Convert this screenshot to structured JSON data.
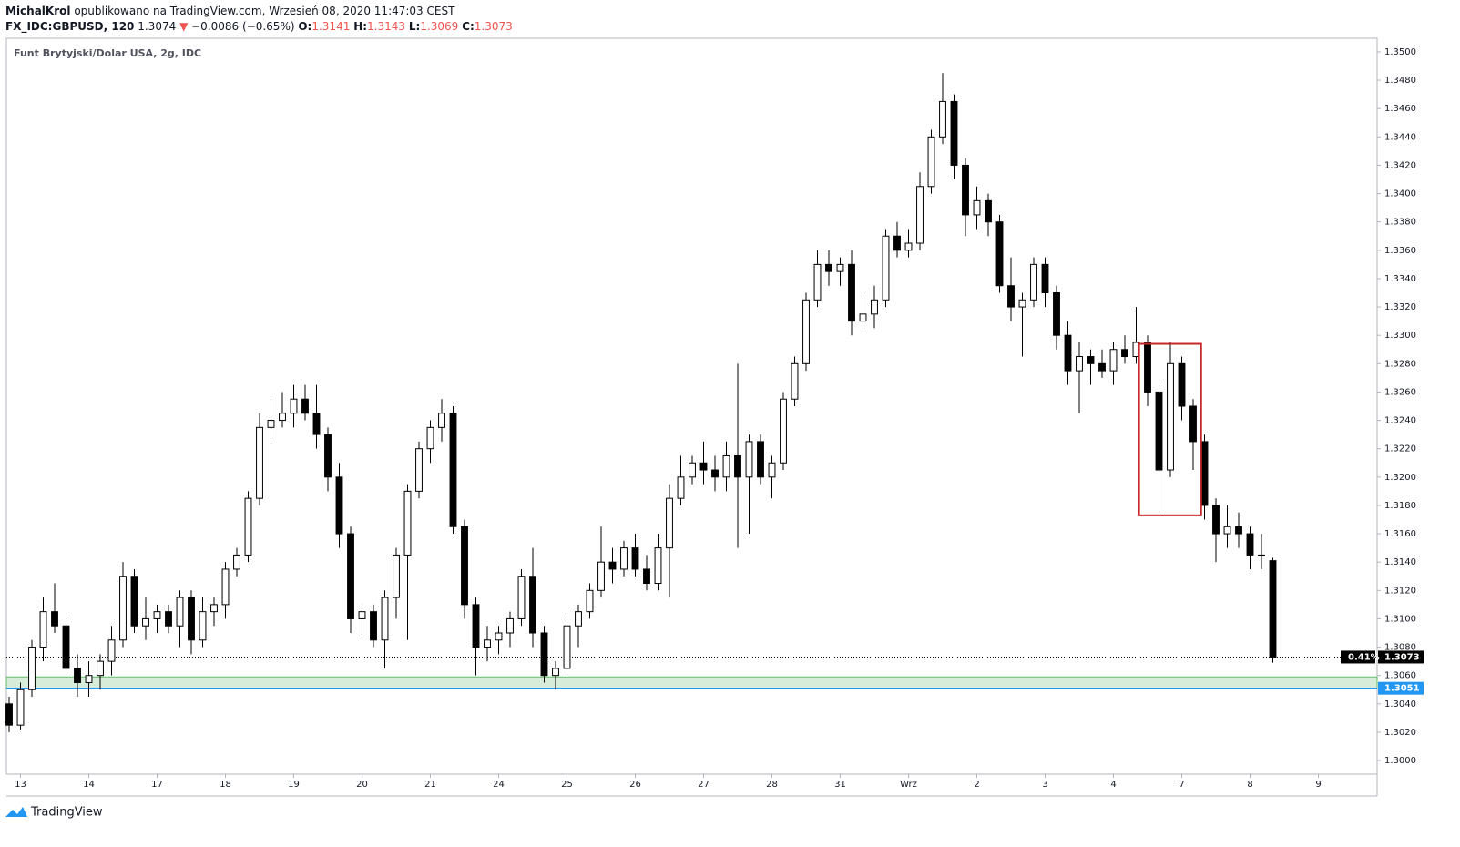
{
  "header": {
    "author": "MichalKrol",
    "published": "opublikowano na TradingView.com, Wrzesień 08, 2020 11:47:03 CEST",
    "symbol": "FX_IDC:GBPUSD, 120",
    "price": "1.3074",
    "arrow": "▼",
    "change": "−0.0086 (−0.65%)",
    "ohlc": [
      {
        "label": "O:",
        "value": "1.3141"
      },
      {
        "label": "H:",
        "value": "1.3143"
      },
      {
        "label": "L:",
        "value": "1.3069"
      },
      {
        "label": "C:",
        "value": "1.3073"
      }
    ]
  },
  "footer": {
    "brand": "TradingView"
  },
  "chart_data": {
    "type": "candlestick",
    "title": "Funt Brytyjski/Dolar USA, 2g, IDC",
    "up_color": "#ffffff",
    "down_color": "#000000",
    "outline_color": "#000000",
    "xlim": [
      -0.24,
      120.16
    ],
    "ylim": [
      1.29904,
      1.35096
    ],
    "xticks": [
      {
        "value": 1,
        "label": "13"
      },
      {
        "value": 7,
        "label": "14"
      },
      {
        "value": 13,
        "label": "17"
      },
      {
        "value": 19,
        "label": "18"
      },
      {
        "value": 25,
        "label": "19"
      },
      {
        "value": 31,
        "label": "20"
      },
      {
        "value": 37,
        "label": "21"
      },
      {
        "value": 43,
        "label": "24"
      },
      {
        "value": 49,
        "label": "25"
      },
      {
        "value": 55,
        "label": "26"
      },
      {
        "value": 61,
        "label": "27"
      },
      {
        "value": 67,
        "label": "28"
      },
      {
        "value": 73,
        "label": "31"
      },
      {
        "value": 79,
        "label": "Wrz"
      },
      {
        "value": 85,
        "label": "2"
      },
      {
        "value": 91,
        "label": "3"
      },
      {
        "value": 97,
        "label": "4"
      },
      {
        "value": 103,
        "label": "7"
      },
      {
        "value": 109,
        "label": "8"
      },
      {
        "value": 115,
        "label": "9"
      }
    ],
    "yticks": [
      {
        "value": 1.3,
        "label": "1.3000"
      },
      {
        "value": 1.302,
        "label": "1.3020"
      },
      {
        "value": 1.304,
        "label": "1.3040"
      },
      {
        "value": 1.306,
        "label": "1.3060"
      },
      {
        "value": 1.308,
        "label": "1.3080"
      },
      {
        "value": 1.31,
        "label": "1.3100"
      },
      {
        "value": 1.312,
        "label": "1.3120"
      },
      {
        "value": 1.314,
        "label": "1.3140"
      },
      {
        "value": 1.316,
        "label": "1.3160"
      },
      {
        "value": 1.318,
        "label": "1.3180"
      },
      {
        "value": 1.32,
        "label": "1.3200"
      },
      {
        "value": 1.322,
        "label": "1.3220"
      },
      {
        "value": 1.324,
        "label": "1.3240"
      },
      {
        "value": 1.326,
        "label": "1.3260"
      },
      {
        "value": 1.328,
        "label": "1.3280"
      },
      {
        "value": 1.33,
        "label": "1.3300"
      },
      {
        "value": 1.332,
        "label": "1.3320"
      },
      {
        "value": 1.334,
        "label": "1.3340"
      },
      {
        "value": 1.336,
        "label": "1.3360"
      },
      {
        "value": 1.338,
        "label": "1.3380"
      },
      {
        "value": 1.34,
        "label": "1.3400"
      },
      {
        "value": 1.342,
        "label": "1.3420"
      },
      {
        "value": 1.344,
        "label": "1.3440"
      },
      {
        "value": 1.346,
        "label": "1.3460"
      },
      {
        "value": 1.348,
        "label": "1.3480"
      },
      {
        "value": 1.35,
        "label": "1.3500"
      }
    ],
    "x": [
      0,
      1,
      2,
      3,
      4,
      5,
      6,
      7,
      8,
      9,
      10,
      11,
      12,
      13,
      14,
      15,
      16,
      17,
      18,
      19,
      20,
      21,
      22,
      23,
      24,
      25,
      26,
      27,
      28,
      29,
      30,
      31,
      32,
      33,
      34,
      35,
      36,
      37,
      38,
      39,
      40,
      41,
      42,
      43,
      44,
      45,
      46,
      47,
      48,
      49,
      50,
      51,
      52,
      53,
      54,
      55,
      56,
      57,
      58,
      59,
      60,
      61,
      62,
      63,
      64,
      65,
      66,
      67,
      68,
      69,
      70,
      71,
      72,
      73,
      74,
      75,
      76,
      77,
      78,
      79,
      80,
      81,
      82,
      83,
      84,
      85,
      86,
      87,
      88,
      89,
      90,
      91,
      92,
      93,
      94,
      95,
      96,
      97,
      98,
      99,
      100,
      101,
      102,
      103,
      104,
      105,
      106,
      107,
      108,
      109,
      110,
      111
    ],
    "candles": [
      [
        1.304,
        1.3045,
        1.302,
        1.3025
      ],
      [
        1.3025,
        1.3055,
        1.3022,
        1.305
      ],
      [
        1.305,
        1.3085,
        1.3045,
        1.308
      ],
      [
        1.308,
        1.3115,
        1.307,
        1.3105
      ],
      [
        1.3105,
        1.3125,
        1.309,
        1.3095
      ],
      [
        1.3095,
        1.31,
        1.306,
        1.3065
      ],
      [
        1.3065,
        1.3075,
        1.3045,
        1.3055
      ],
      [
        1.3055,
        1.307,
        1.3045,
        1.306
      ],
      [
        1.306,
        1.3075,
        1.305,
        1.307
      ],
      [
        1.307,
        1.3095,
        1.306,
        1.3085
      ],
      [
        1.3085,
        1.314,
        1.308,
        1.313
      ],
      [
        1.313,
        1.3135,
        1.309,
        1.3095
      ],
      [
        1.3095,
        1.3115,
        1.3085,
        1.31
      ],
      [
        1.31,
        1.311,
        1.309,
        1.3105
      ],
      [
        1.3105,
        1.311,
        1.309,
        1.3095
      ],
      [
        1.3095,
        1.312,
        1.308,
        1.3115
      ],
      [
        1.3115,
        1.312,
        1.3075,
        1.3085
      ],
      [
        1.3085,
        1.3115,
        1.308,
        1.3105
      ],
      [
        1.3105,
        1.3115,
        1.3095,
        1.311
      ],
      [
        1.311,
        1.314,
        1.31,
        1.3135
      ],
      [
        1.3135,
        1.315,
        1.313,
        1.3145
      ],
      [
        1.3145,
        1.319,
        1.314,
        1.3185
      ],
      [
        1.3185,
        1.3245,
        1.318,
        1.3235
      ],
      [
        1.3235,
        1.3255,
        1.3225,
        1.324
      ],
      [
        1.324,
        1.326,
        1.3235,
        1.3245
      ],
      [
        1.3245,
        1.3265,
        1.3235,
        1.3255
      ],
      [
        1.3255,
        1.3265,
        1.324,
        1.3245
      ],
      [
        1.3245,
        1.3265,
        1.322,
        1.323
      ],
      [
        1.323,
        1.3235,
        1.319,
        1.32
      ],
      [
        1.32,
        1.321,
        1.315,
        1.316
      ],
      [
        1.316,
        1.3165,
        1.309,
        1.31
      ],
      [
        1.31,
        1.311,
        1.3085,
        1.3105
      ],
      [
        1.3105,
        1.311,
        1.308,
        1.3085
      ],
      [
        1.3085,
        1.312,
        1.3065,
        1.3115
      ],
      [
        1.3115,
        1.315,
        1.31,
        1.3145
      ],
      [
        1.3145,
        1.3195,
        1.3085,
        1.319
      ],
      [
        1.319,
        1.3225,
        1.3185,
        1.322
      ],
      [
        1.322,
        1.324,
        1.321,
        1.3235
      ],
      [
        1.3235,
        1.3255,
        1.3225,
        1.3245
      ],
      [
        1.3245,
        1.325,
        1.316,
        1.3165
      ],
      [
        1.3165,
        1.317,
        1.31,
        1.311
      ],
      [
        1.311,
        1.3115,
        1.306,
        1.308
      ],
      [
        1.308,
        1.3095,
        1.307,
        1.3085
      ],
      [
        1.3085,
        1.3095,
        1.3075,
        1.309
      ],
      [
        1.309,
        1.3105,
        1.308,
        1.31
      ],
      [
        1.31,
        1.3135,
        1.3095,
        1.313
      ],
      [
        1.313,
        1.315,
        1.308,
        1.309
      ],
      [
        1.309,
        1.3095,
        1.3055,
        1.306
      ],
      [
        1.306,
        1.307,
        1.305,
        1.3065
      ],
      [
        1.3065,
        1.31,
        1.306,
        1.3095
      ],
      [
        1.3095,
        1.311,
        1.308,
        1.3105
      ],
      [
        1.3105,
        1.3125,
        1.31,
        1.312
      ],
      [
        1.312,
        1.3165,
        1.3115,
        1.314
      ],
      [
        1.314,
        1.315,
        1.3125,
        1.3135
      ],
      [
        1.3135,
        1.3155,
        1.313,
        1.315
      ],
      [
        1.315,
        1.316,
        1.313,
        1.3135
      ],
      [
        1.3135,
        1.3145,
        1.312,
        1.3125
      ],
      [
        1.3125,
        1.316,
        1.312,
        1.315
      ],
      [
        1.315,
        1.3195,
        1.3115,
        1.3185
      ],
      [
        1.3185,
        1.3215,
        1.318,
        1.32
      ],
      [
        1.32,
        1.3215,
        1.3195,
        1.321
      ],
      [
        1.321,
        1.3225,
        1.3195,
        1.3205
      ],
      [
        1.3205,
        1.3215,
        1.319,
        1.32
      ],
      [
        1.32,
        1.3225,
        1.319,
        1.3215
      ],
      [
        1.3215,
        1.328,
        1.315,
        1.32
      ],
      [
        1.32,
        1.323,
        1.316,
        1.3225
      ],
      [
        1.3225,
        1.323,
        1.3195,
        1.32
      ],
      [
        1.32,
        1.3215,
        1.3185,
        1.321
      ],
      [
        1.321,
        1.326,
        1.3205,
        1.3255
      ],
      [
        1.3255,
        1.3285,
        1.325,
        1.328
      ],
      [
        1.328,
        1.333,
        1.3275,
        1.3325
      ],
      [
        1.3325,
        1.336,
        1.332,
        1.335
      ],
      [
        1.335,
        1.336,
        1.3335,
        1.3345
      ],
      [
        1.3345,
        1.3355,
        1.3335,
        1.335
      ],
      [
        1.335,
        1.336,
        1.33,
        1.331
      ],
      [
        1.331,
        1.333,
        1.3305,
        1.3315
      ],
      [
        1.3315,
        1.3335,
        1.3305,
        1.3325
      ],
      [
        1.3325,
        1.3375,
        1.332,
        1.337
      ],
      [
        1.337,
        1.338,
        1.3355,
        1.336
      ],
      [
        1.336,
        1.3375,
        1.3355,
        1.3365
      ],
      [
        1.3365,
        1.3415,
        1.336,
        1.3405
      ],
      [
        1.3405,
        1.3445,
        1.34,
        1.344
      ],
      [
        1.344,
        1.3485,
        1.3435,
        1.3465
      ],
      [
        1.3465,
        1.347,
        1.341,
        1.342
      ],
      [
        1.342,
        1.3425,
        1.337,
        1.3385
      ],
      [
        1.3385,
        1.3405,
        1.3375,
        1.3395
      ],
      [
        1.3395,
        1.34,
        1.337,
        1.338
      ],
      [
        1.338,
        1.3385,
        1.333,
        1.3335
      ],
      [
        1.3335,
        1.3355,
        1.331,
        1.332
      ],
      [
        1.332,
        1.333,
        1.3285,
        1.3325
      ],
      [
        1.3325,
        1.3355,
        1.332,
        1.335
      ],
      [
        1.335,
        1.3355,
        1.332,
        1.333
      ],
      [
        1.333,
        1.3335,
        1.329,
        1.33
      ],
      [
        1.33,
        1.331,
        1.3265,
        1.3275
      ],
      [
        1.3275,
        1.3295,
        1.3245,
        1.3285
      ],
      [
        1.3285,
        1.329,
        1.3265,
        1.328
      ],
      [
        1.328,
        1.329,
        1.327,
        1.3275
      ],
      [
        1.3275,
        1.3295,
        1.3265,
        1.329
      ],
      [
        1.329,
        1.33,
        1.328,
        1.3285
      ],
      [
        1.3285,
        1.332,
        1.328,
        1.3295
      ],
      [
        1.3295,
        1.33,
        1.325,
        1.326
      ],
      [
        1.326,
        1.3265,
        1.3175,
        1.3205
      ],
      [
        1.3205,
        1.3295,
        1.32,
        1.328
      ],
      [
        1.328,
        1.3285,
        1.324,
        1.325
      ],
      [
        1.325,
        1.3255,
        1.3205,
        1.3225
      ],
      [
        1.3225,
        1.323,
        1.317,
        1.318
      ],
      [
        1.318,
        1.3185,
        1.314,
        1.316
      ],
      [
        1.316,
        1.318,
        1.315,
        1.3165
      ],
      [
        1.3165,
        1.3175,
        1.315,
        1.316
      ],
      [
        1.316,
        1.3165,
        1.3135,
        1.3145
      ],
      [
        1.3145,
        1.316,
        1.3135,
        1.3145
      ],
      [
        1.3141,
        1.3143,
        1.3069,
        1.3073
      ]
    ],
    "zone": {
      "ylim": [
        1.3051,
        1.3059
      ],
      "color": "#c8e6c9"
    },
    "hline": {
      "value": 1.3051,
      "color": "#2196f3"
    },
    "last_line": {
      "value": 1.3073,
      "tag": "0.41%"
    },
    "box": {
      "xlim": [
        99.25,
        104.7
      ],
      "ylim": [
        1.3173,
        1.3294
      ],
      "color": "#c62828"
    }
  }
}
